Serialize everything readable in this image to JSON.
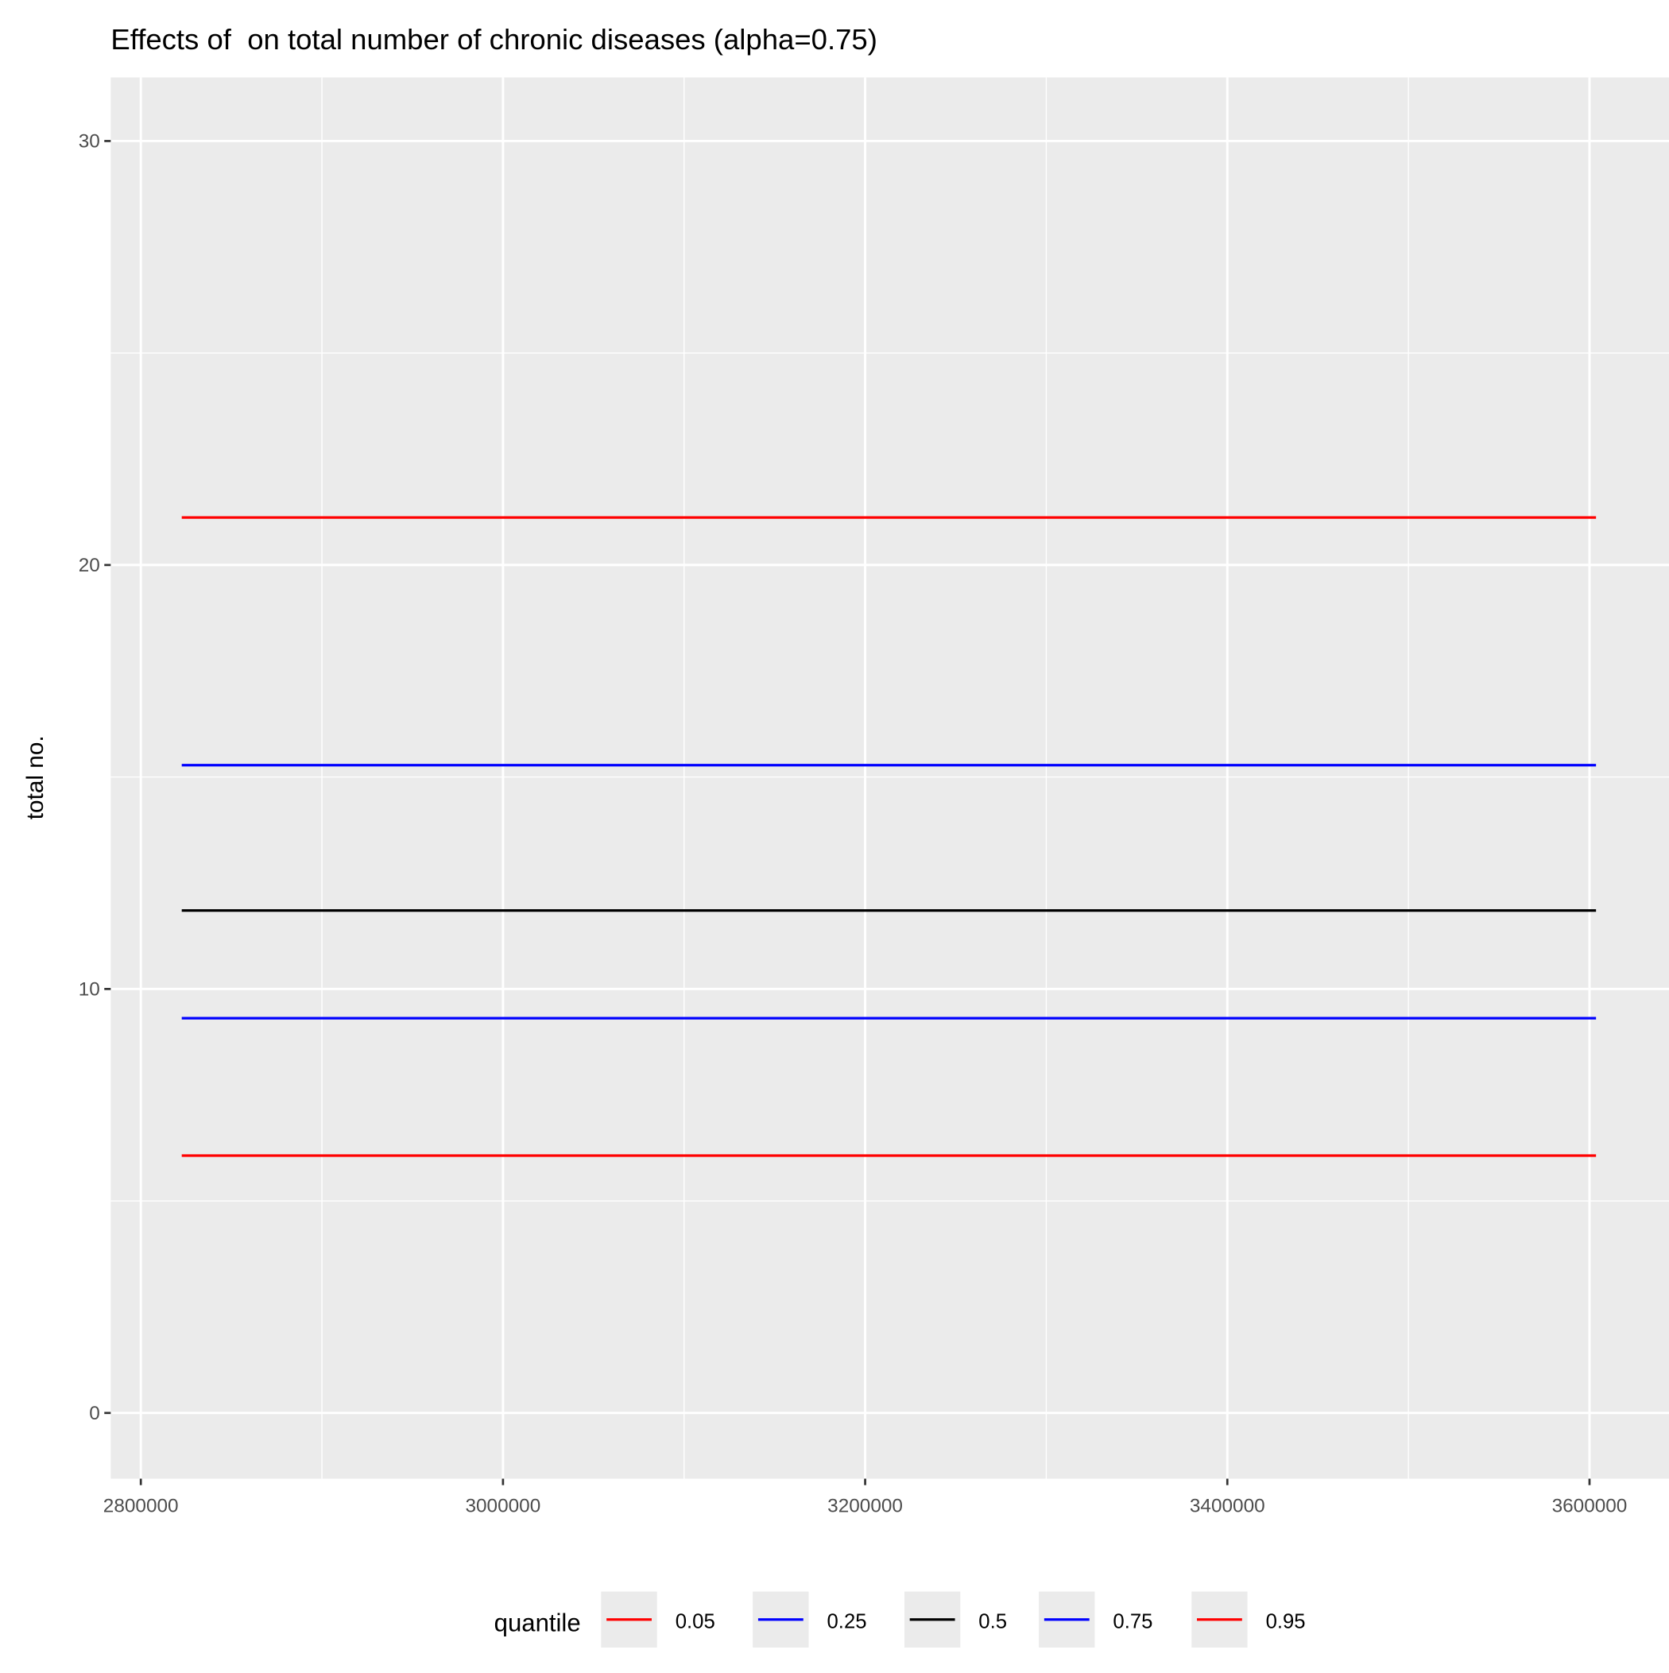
{
  "chart_data": {
    "type": "line",
    "title": "Effects of  on total number of chronic diseases (alpha=0.75)",
    "y_label": "total no.",
    "legend_title": "quantile",
    "legend_position": "bottom",
    "grid": true,
    "x": [
      2822600,
      3603600
    ],
    "series": [
      {
        "name": "0.05",
        "color": "#ff0000",
        "values": [
          6.07,
          6.07
        ]
      },
      {
        "name": "0.25",
        "color": "#0000ff",
        "values": [
          9.31,
          9.31
        ]
      },
      {
        "name": "0.5",
        "color": "#000000",
        "values": [
          11.85,
          11.85
        ]
      },
      {
        "name": "0.75",
        "color": "#0000ff",
        "values": [
          15.28,
          15.28
        ]
      },
      {
        "name": "0.95",
        "color": "#ff0000",
        "values": [
          21.12,
          21.12
        ]
      }
    ],
    "xlim": [
      2783400,
      3643900
    ],
    "xticks": [
      2800000,
      3000000,
      3200000,
      3400000,
      3600000
    ],
    "ylim": [
      -1.55,
      31.5
    ],
    "yticks": [
      0,
      10,
      20,
      30
    ]
  }
}
